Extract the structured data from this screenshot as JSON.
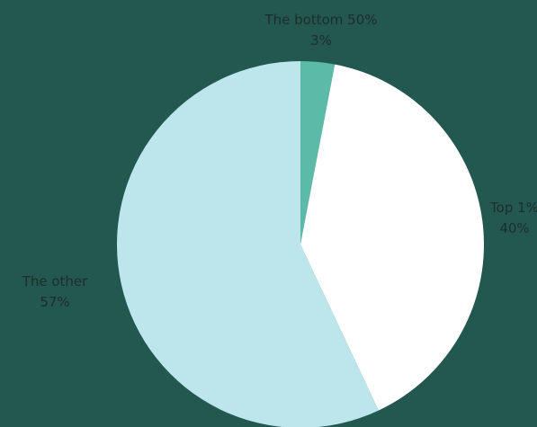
{
  "chart_data": {
    "type": "pie",
    "background_color": "#225850",
    "slices": [
      {
        "name": "The bottom 50%",
        "value": 3,
        "value_label": "3%",
        "color": "#5bbaa8"
      },
      {
        "name": "Top 1%",
        "value": 40,
        "value_label": "40%",
        "color": "#ffffff"
      },
      {
        "name": "The other",
        "value": 57,
        "value_label": "57%",
        "color": "#bde6ec"
      }
    ],
    "start_angle_deg": 0,
    "direction": "clockwise",
    "legend": "none"
  }
}
